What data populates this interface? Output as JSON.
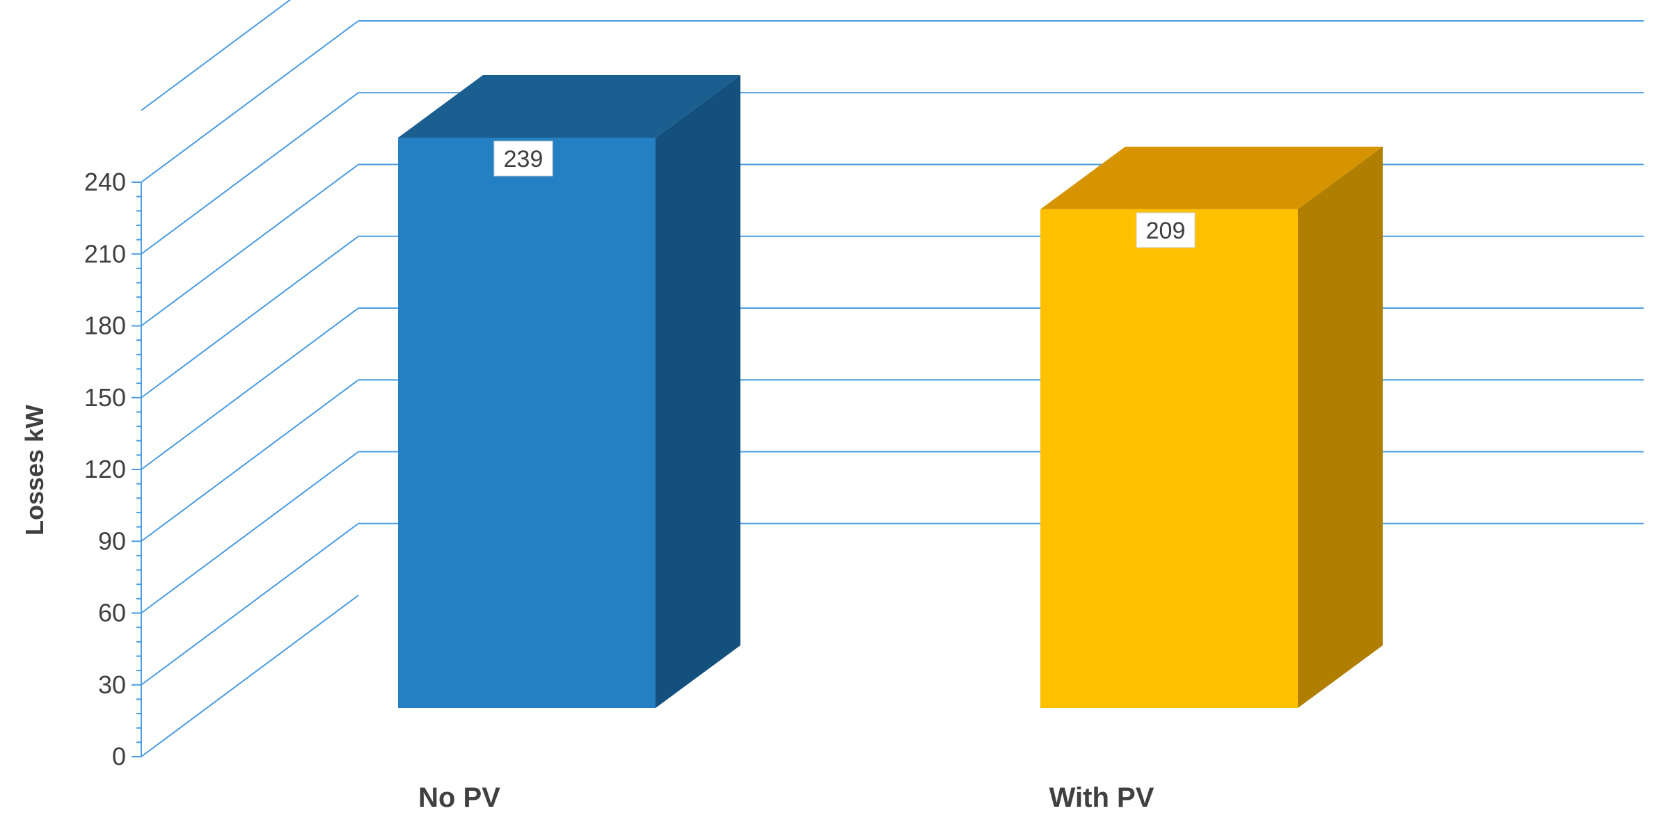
{
  "chart_data": {
    "type": "bar",
    "style": "3d-column",
    "categories": [
      "No PV",
      "With PV"
    ],
    "values": [
      239,
      209
    ],
    "data_labels": [
      "239",
      "209"
    ],
    "ylabel": "Losses kW",
    "ylim": [
      0,
      240
    ],
    "yticks": [
      0,
      30,
      60,
      90,
      120,
      150,
      180,
      210,
      240
    ],
    "ytick_labels": [
      "0",
      "30",
      "60",
      "90",
      "120",
      "150",
      "180",
      "210",
      "240"
    ],
    "grid": true,
    "legend": "none",
    "colors": {
      "no_pv_front": "#2580C3",
      "no_pv_top": "#1B5F91",
      "no_pv_side": "#14507E",
      "with_pv_front": "#FFC000",
      "with_pv_top": "#D69400",
      "with_pv_side": "#B07E00",
      "gridline": "#4A9BE0"
    }
  }
}
